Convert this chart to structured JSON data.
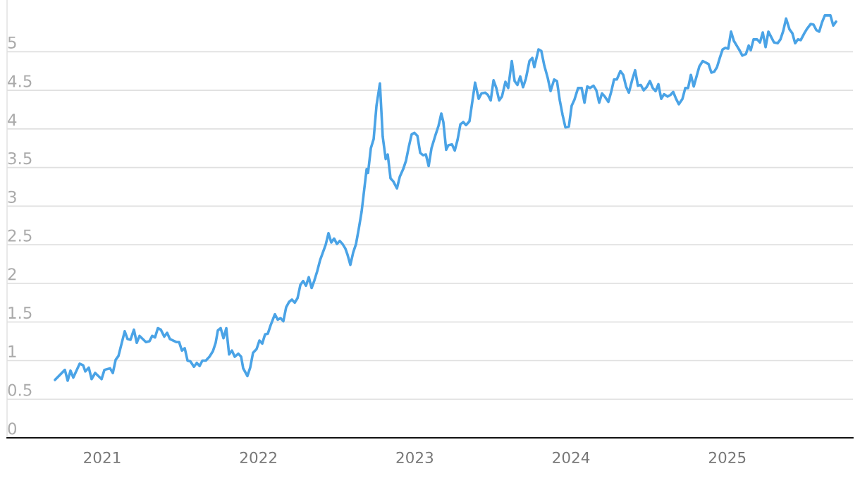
{
  "chart_data": {
    "type": "line",
    "x": [
      2020.698,
      2020.761,
      2020.779,
      2020.797,
      2020.815,
      2020.856,
      2020.878,
      2020.892,
      2020.914,
      2020.932,
      2020.955,
      2020.996,
      2021.014,
      2021.05,
      2021.068,
      2021.086,
      2021.104,
      2021.144,
      2021.162,
      2021.181,
      2021.203,
      2021.221,
      2021.239,
      2021.28,
      2021.302,
      2021.32,
      2021.338,
      2021.356,
      2021.375,
      2021.397,
      2021.415,
      2021.433,
      2021.474,
      2021.492,
      2021.51,
      2021.528,
      2021.546,
      2021.564,
      2021.587,
      2021.605,
      2021.623,
      2021.641,
      2021.663,
      2021.686,
      2021.708,
      2021.726,
      2021.74,
      2021.758,
      2021.776,
      2021.794,
      2021.812,
      2021.83,
      2021.848,
      2021.871,
      2021.889,
      2021.902,
      2021.929,
      2021.947,
      2021.965,
      2021.988,
      2022.006,
      2022.024,
      2022.042,
      2022.06,
      2022.078,
      2022.105,
      2022.123,
      2022.141,
      2022.159,
      2022.177,
      2022.196,
      2022.214,
      2022.232,
      2022.25,
      2022.268,
      2022.286,
      2022.304,
      2022.322,
      2022.34,
      2022.358,
      2022.376,
      2022.394,
      2022.412,
      2022.43,
      2022.448,
      2022.466,
      2022.484,
      2022.502,
      2022.52,
      2022.538,
      2022.556,
      2022.57,
      2022.588,
      2022.606,
      2022.624,
      2022.642,
      2022.66,
      2022.678,
      2022.692,
      2022.701,
      2022.719,
      2022.737,
      2022.755,
      2022.777,
      2022.795,
      2022.814,
      2022.827,
      2022.845,
      2022.863,
      2022.886,
      2022.904,
      2022.926,
      2022.944,
      2022.962,
      2022.98,
      2022.998,
      2023.017,
      2023.035,
      2023.053,
      2023.071,
      2023.089,
      2023.107,
      2023.134,
      2023.152,
      2023.17,
      2023.183,
      2023.201,
      2023.215,
      2023.238,
      2023.256,
      2023.274,
      2023.292,
      2023.31,
      2023.328,
      2023.35,
      2023.386,
      2023.409,
      2023.427,
      2023.45,
      2023.468,
      2023.486,
      2023.504,
      2023.522,
      2023.54,
      2023.558,
      2023.58,
      2023.598,
      2023.621,
      2023.639,
      2023.657,
      2023.675,
      2023.693,
      2023.711,
      2023.734,
      2023.752,
      2023.765,
      2023.792,
      2023.81,
      2023.829,
      2023.851,
      2023.869,
      2023.892,
      2023.91,
      2023.928,
      2023.946,
      2023.964,
      2023.986,
      2024.004,
      2024.022,
      2024.045,
      2024.068,
      2024.086,
      2024.104,
      2024.122,
      2024.144,
      2024.162,
      2024.18,
      2024.198,
      2024.216,
      2024.239,
      2024.257,
      2024.275,
      2024.293,
      2024.316,
      2024.334,
      2024.352,
      2024.37,
      2024.392,
      2024.41,
      2024.428,
      2024.446,
      2024.465,
      2024.483,
      2024.505,
      2024.523,
      2024.541,
      2024.559,
      2024.577,
      2024.595,
      2024.618,
      2024.636,
      2024.654,
      2024.672,
      2024.69,
      2024.713,
      2024.731,
      2024.749,
      2024.767,
      2024.785,
      2024.803,
      2024.821,
      2024.843,
      2024.861,
      2024.88,
      2024.898,
      2024.916,
      2024.934,
      2024.952,
      2024.97,
      2024.988,
      2025.006,
      2025.024,
      2025.042,
      2025.06,
      2025.078,
      2025.096,
      2025.119,
      2025.137,
      2025.15,
      2025.168,
      2025.191,
      2025.209,
      2025.227,
      2025.245,
      2025.263,
      2025.281,
      2025.299,
      2025.322,
      2025.34,
      2025.358,
      2025.376,
      2025.398,
      2025.416,
      2025.434,
      2025.452,
      2025.47,
      2025.493,
      2025.511,
      2025.534,
      2025.552,
      2025.57,
      2025.588,
      2025.606,
      2025.624,
      2025.642,
      2025.66,
      2025.678,
      2025.696
    ],
    "series": [
      {
        "color": "#4aa3e6",
        "values": [
          0.75,
          0.88,
          0.74,
          0.87,
          0.78,
          0.96,
          0.94,
          0.86,
          0.91,
          0.76,
          0.84,
          0.76,
          0.88,
          0.9,
          0.84,
          1.01,
          1.06,
          1.38,
          1.28,
          1.27,
          1.4,
          1.23,
          1.32,
          1.24,
          1.25,
          1.32,
          1.3,
          1.42,
          1.4,
          1.31,
          1.36,
          1.28,
          1.24,
          1.24,
          1.13,
          1.16,
          1.0,
          0.99,
          0.92,
          0.97,
          0.93,
          1.0,
          1.0,
          1.05,
          1.12,
          1.23,
          1.39,
          1.42,
          1.29,
          1.42,
          1.08,
          1.13,
          1.05,
          1.09,
          1.05,
          0.9,
          0.8,
          0.91,
          1.1,
          1.15,
          1.26,
          1.22,
          1.34,
          1.35,
          1.46,
          1.6,
          1.53,
          1.55,
          1.51,
          1.69,
          1.76,
          1.79,
          1.75,
          1.81,
          1.98,
          2.03,
          1.97,
          2.08,
          1.94,
          2.04,
          2.16,
          2.3,
          2.4,
          2.5,
          2.65,
          2.53,
          2.58,
          2.51,
          2.55,
          2.51,
          2.45,
          2.37,
          2.24,
          2.4,
          2.51,
          2.71,
          2.93,
          3.24,
          3.48,
          3.43,
          3.75,
          3.87,
          4.3,
          4.59,
          3.9,
          3.61,
          3.67,
          3.36,
          3.32,
          3.23,
          3.38,
          3.48,
          3.59,
          3.77,
          3.93,
          3.95,
          3.91,
          3.69,
          3.66,
          3.67,
          3.52,
          3.75,
          3.93,
          4.04,
          4.2,
          4.09,
          3.73,
          3.79,
          3.8,
          3.72,
          3.86,
          4.06,
          4.09,
          4.05,
          4.1,
          4.6,
          4.39,
          4.46,
          4.47,
          4.44,
          4.37,
          4.63,
          4.53,
          4.37,
          4.42,
          4.61,
          4.53,
          4.88,
          4.62,
          4.57,
          4.68,
          4.54,
          4.65,
          4.88,
          4.92,
          4.8,
          5.03,
          5.01,
          4.82,
          4.66,
          4.49,
          4.64,
          4.62,
          4.37,
          4.18,
          4.02,
          4.03,
          4.3,
          4.38,
          4.53,
          4.53,
          4.34,
          4.55,
          4.53,
          4.56,
          4.5,
          4.34,
          4.46,
          4.42,
          4.35,
          4.48,
          4.64,
          4.64,
          4.75,
          4.7,
          4.55,
          4.47,
          4.64,
          4.76,
          4.56,
          4.57,
          4.5,
          4.54,
          4.62,
          4.53,
          4.49,
          4.58,
          4.39,
          4.45,
          4.42,
          4.44,
          4.48,
          4.39,
          4.32,
          4.39,
          4.53,
          4.53,
          4.7,
          4.55,
          4.68,
          4.81,
          4.88,
          4.86,
          4.84,
          4.73,
          4.74,
          4.8,
          4.92,
          5.03,
          5.05,
          5.04,
          5.26,
          5.14,
          5.08,
          5.02,
          4.95,
          4.97,
          5.08,
          5.02,
          5.16,
          5.16,
          5.12,
          5.25,
          5.06,
          5.26,
          5.19,
          5.12,
          5.11,
          5.16,
          5.27,
          5.43,
          5.29,
          5.24,
          5.11,
          5.16,
          5.15,
          5.24,
          5.3,
          5.36,
          5.35,
          5.28,
          5.26,
          5.38,
          5.47,
          5.47,
          5.47,
          5.34,
          5.39
        ]
      }
    ],
    "xlim": [
      2020.391,
      2025.804
    ],
    "xticks": [
      2021,
      2022,
      2023,
      2024,
      2025
    ],
    "yticks": [
      0,
      0.5,
      1,
      1.5,
      2,
      2.5,
      3,
      3.5,
      4,
      4.5,
      5
    ],
    "ylim": [
      0,
      5.67
    ],
    "grid": "y",
    "legend": false,
    "marker": "none",
    "line_style": "solid"
  }
}
